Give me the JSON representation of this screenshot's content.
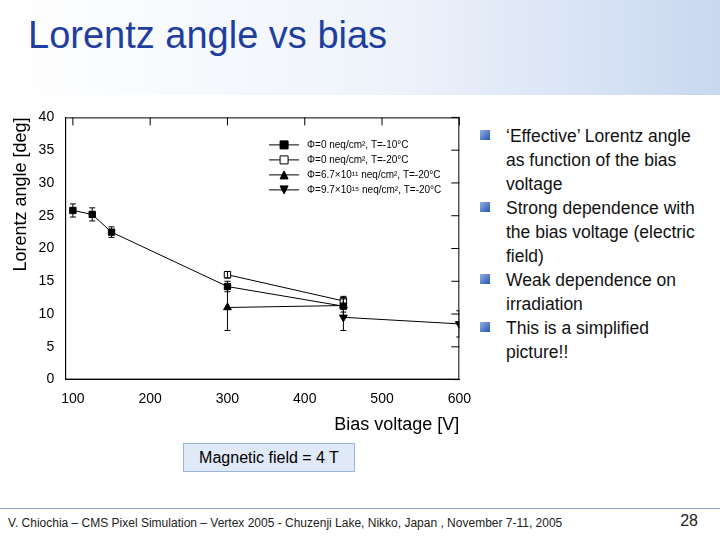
{
  "slide": {
    "title": "Lorentz angle vs bias",
    "bullets": [
      "‘Effective’ Lorentz angle as function of the bias voltage",
      "Strong dependence with the bias voltage (electric field)",
      "Weak dependence on irradiation",
      "This is a simplified picture!!"
    ],
    "note": "Magnetic field = 4 T",
    "footer": "V. Chiochia – CMS Pixel Simulation – Vertex 2005 - Chuzenji Lake, Nikko, Japan , November 7-11, 2005",
    "page": 28
  },
  "chart_data": {
    "type": "scatter",
    "x_label": "Bias voltage [V]",
    "y_label": "Lorentz angle [deg]",
    "xlim": [
      90,
      600
    ],
    "xticks": [
      100,
      200,
      300,
      400,
      500,
      600
    ],
    "ylim": [
      0,
      40
    ],
    "yticks": [
      0,
      5,
      10,
      15,
      20,
      25,
      30,
      35,
      40
    ],
    "grid": false,
    "legend": "upper right",
    "series": [
      {
        "name": "Φ=0 neq/cm², T=-10°C",
        "color": "#000000",
        "marker": "square",
        "line_style": "solid",
        "x": [
          100,
          125,
          150,
          300,
          450
        ],
        "values": [
          25.8,
          25.2,
          22.5,
          14.2,
          11.2
        ],
        "errors": [
          1.0,
          1.0,
          0.8,
          0.8,
          1.5
        ]
      },
      {
        "name": "Φ=0 neq/cm², T=-20°C",
        "color": "#000000",
        "marker": "open_square",
        "line_style": "solid",
        "x": [
          300,
          450
        ],
        "values": [
          16.0,
          12.0
        ],
        "errors": [
          0.5,
          0.5
        ]
      },
      {
        "name": "Φ=6.7×10¹¹ neq/cm², T=-20°C",
        "color": "#000000",
        "marker": "triangle",
        "line_style": "solid",
        "x": [
          300,
          450
        ],
        "values": [
          11.0,
          11.3
        ],
        "errors": [
          3.5,
          1.0
        ]
      },
      {
        "name": "Φ=9.7×10¹⁵ neq/cm², T=-20°C",
        "color": "#000000",
        "marker": "triangle_down",
        "line_style": "solid",
        "x": [
          450,
          600
        ],
        "values": [
          9.5,
          8.5
        ],
        "errors": [
          2.0,
          2.0
        ]
      }
    ]
  }
}
